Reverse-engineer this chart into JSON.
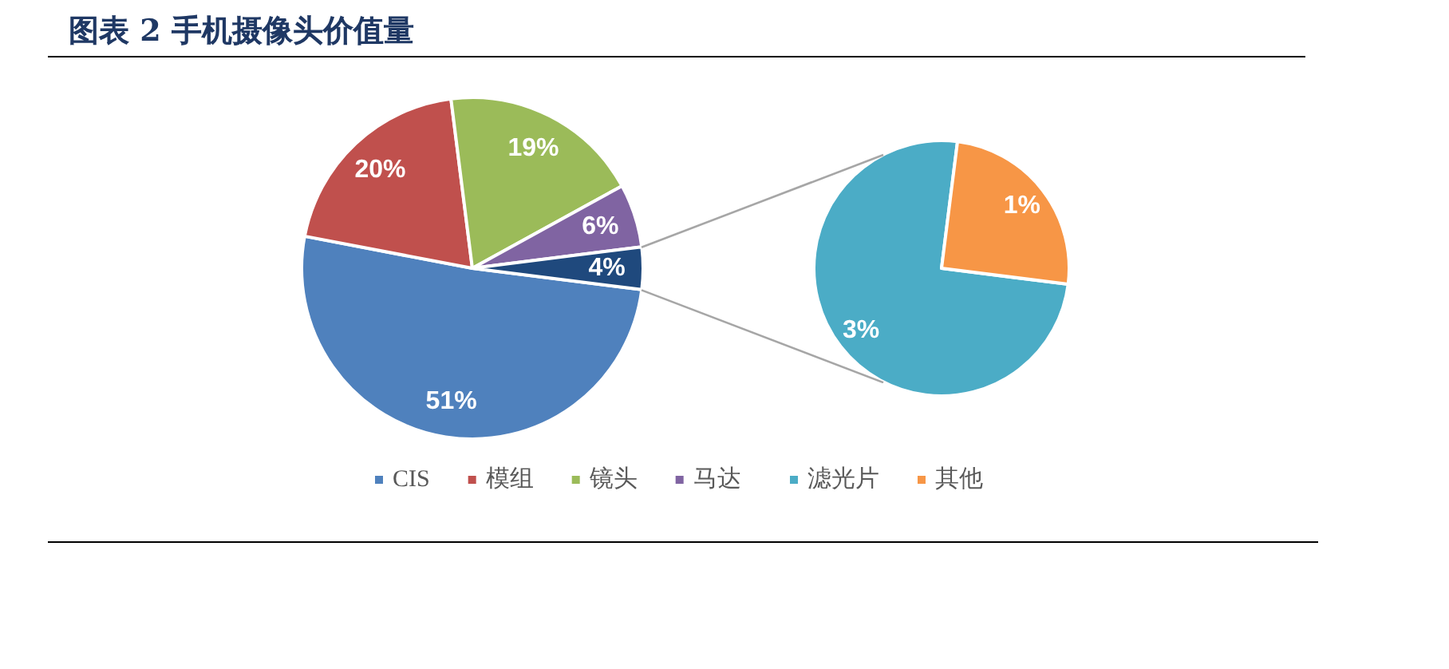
{
  "chart_data": [
    {
      "type": "pie",
      "title": "图表 2 手机摄像头价值量",
      "categories": [
        "CIS",
        "模组",
        "镜头",
        "马达",
        null
      ],
      "values": [
        51,
        20,
        19,
        6,
        4
      ],
      "colors": [
        "#4f81bd",
        "#c0504d",
        "#9bbb59",
        "#8064a2",
        "#1f497d"
      ],
      "value_labels": [
        "51%",
        "20%",
        "19%",
        "6%",
        "4%"
      ],
      "legend": "bottom"
    },
    {
      "type": "pie",
      "categories": [
        "滤光片",
        "其他"
      ],
      "values": [
        3,
        1
      ],
      "colors": [
        "#4bacc6",
        "#f79646"
      ],
      "value_labels": [
        "3%",
        "1%"
      ],
      "legend": "bottom"
    }
  ]
}
